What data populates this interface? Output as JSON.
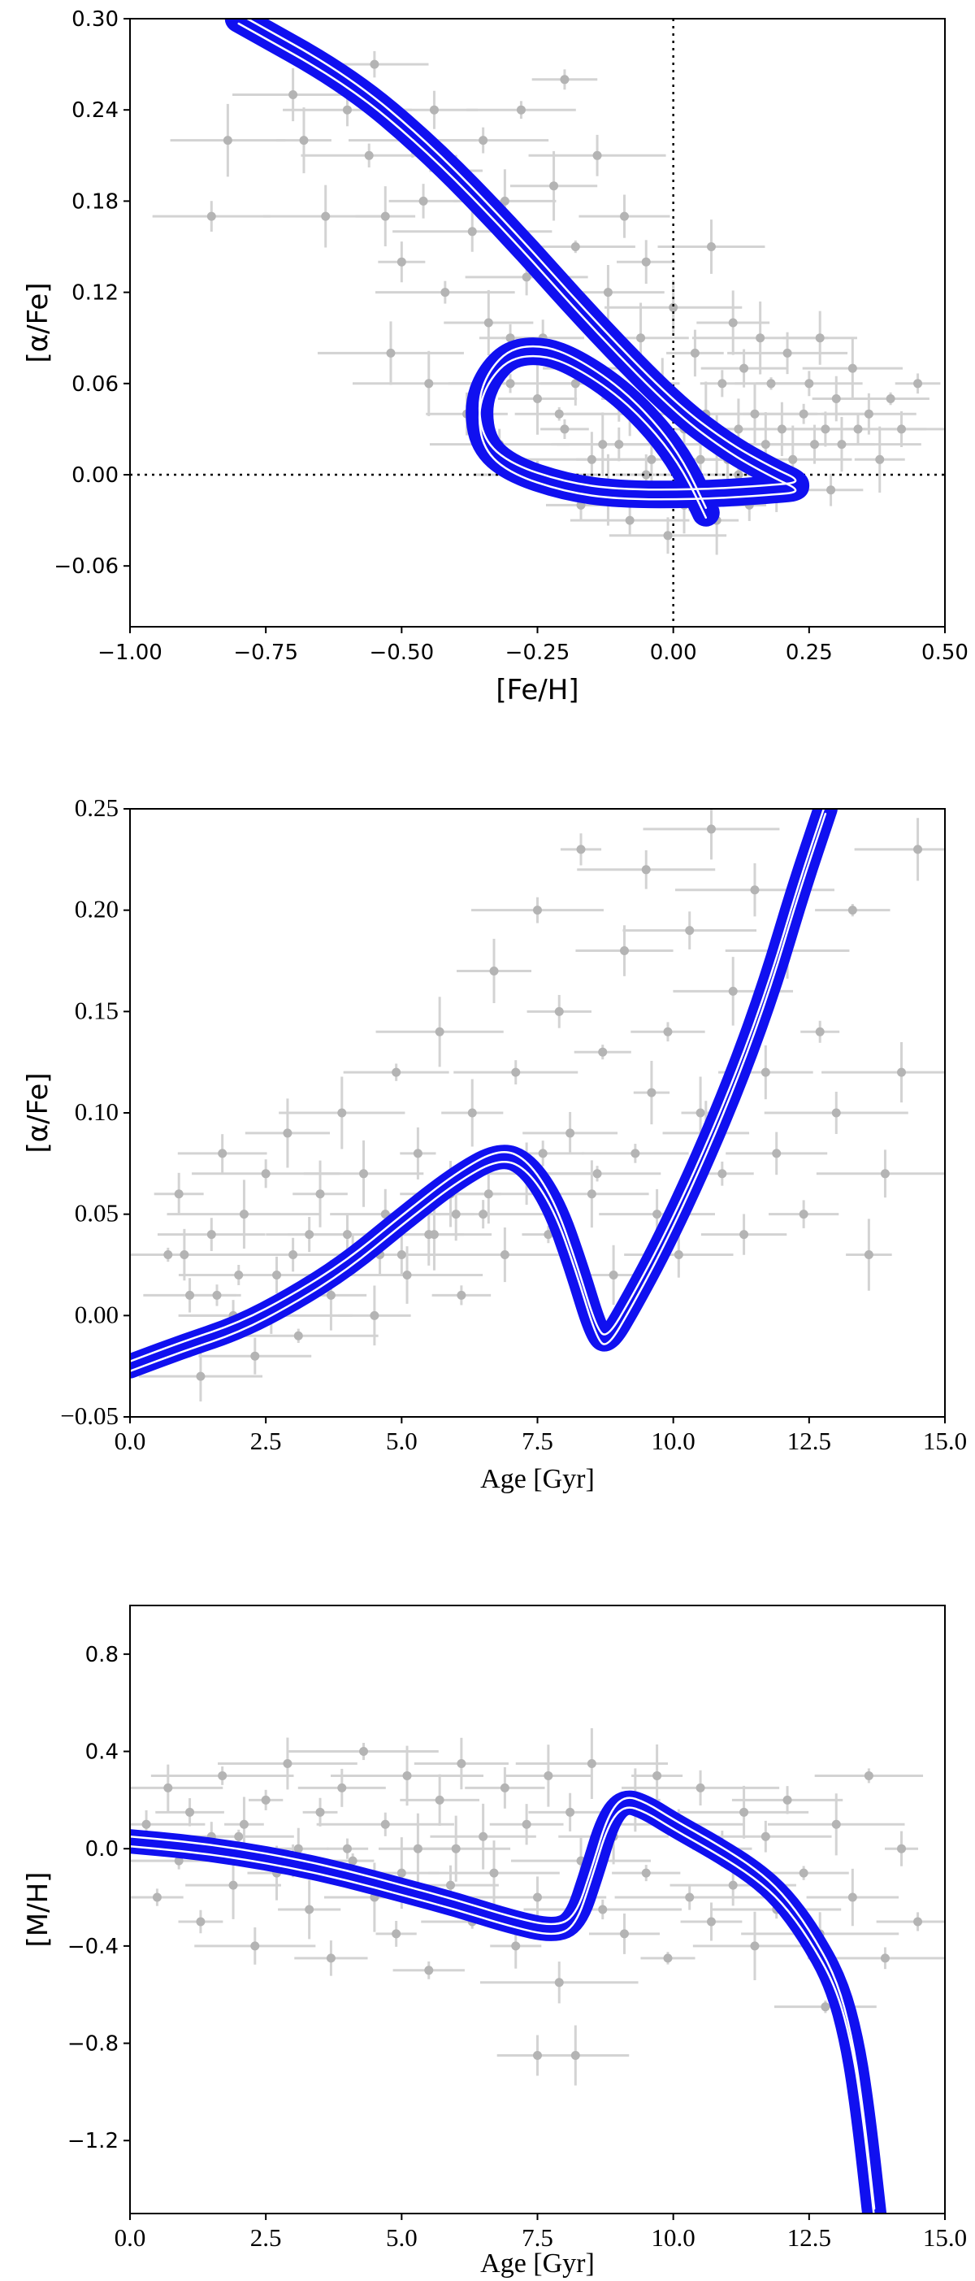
{
  "chart_data": [
    {
      "type": "scatter",
      "xlabel": "[Fe/H]",
      "ylabel": "[α/Fe]",
      "xlim": [
        -1.0,
        0.5
      ],
      "ylim": [
        -0.1,
        0.3
      ],
      "xticks": [
        "−1.00",
        "−0.75",
        "−0.50",
        "−0.25",
        "0.00",
        "0.25",
        "0.50"
      ],
      "yticks": [
        "−0.06",
        "0.00",
        "0.06",
        "0.12",
        "0.18",
        "0.24",
        "0.30"
      ],
      "reference_lines": {
        "x": 0.0,
        "y": 0.0
      },
      "grid": false,
      "legend": "none",
      "colors": {
        "model": "#1010f0",
        "data": "#b4b4b4",
        "errorbars": "#d3d3d3"
      },
      "model_track": [
        [
          -0.8,
          0.3
        ],
        [
          -0.6,
          0.26
        ],
        [
          -0.45,
          0.215
        ],
        [
          -0.3,
          0.16
        ],
        [
          -0.15,
          0.1
        ],
        [
          0.0,
          0.045
        ],
        [
          0.1,
          0.018
        ],
        [
          0.18,
          0.002
        ],
        [
          0.24,
          -0.008
        ],
        [
          0.18,
          -0.01
        ],
        [
          0.05,
          -0.013
        ],
        [
          -0.1,
          -0.013
        ],
        [
          -0.2,
          -0.008
        ],
        [
          -0.3,
          0.004
        ],
        [
          -0.35,
          0.02
        ],
        [
          -0.36,
          0.045
        ],
        [
          -0.34,
          0.065
        ],
        [
          -0.3,
          0.08
        ],
        [
          -0.24,
          0.082
        ],
        [
          -0.18,
          0.074
        ],
        [
          -0.1,
          0.055
        ],
        [
          -0.03,
          0.03
        ],
        [
          0.02,
          0.005
        ],
        [
          0.06,
          -0.025
        ]
      ],
      "data_points": [
        [
          -0.85,
          0.17
        ],
        [
          -0.82,
          0.22
        ],
        [
          -0.7,
          0.25
        ],
        [
          -0.68,
          0.22
        ],
        [
          -0.64,
          0.17
        ],
        [
          -0.6,
          0.24
        ],
        [
          -0.56,
          0.21
        ],
        [
          -0.55,
          0.27
        ],
        [
          -0.53,
          0.17
        ],
        [
          -0.52,
          0.08
        ],
        [
          -0.5,
          0.14
        ],
        [
          -0.48,
          0.22
        ],
        [
          -0.46,
          0.18
        ],
        [
          -0.45,
          0.06
        ],
        [
          -0.44,
          0.24
        ],
        [
          -0.42,
          0.12
        ],
        [
          -0.4,
          0.2
        ],
        [
          -0.38,
          0.04
        ],
        [
          -0.37,
          0.16
        ],
        [
          -0.35,
          0.22
        ],
        [
          -0.34,
          0.1
        ],
        [
          -0.32,
          0.02
        ],
        [
          -0.31,
          0.18
        ],
        [
          -0.3,
          0.06
        ],
        [
          -0.28,
          0.24
        ],
        [
          -0.27,
          0.13
        ],
        [
          -0.25,
          0.0
        ],
        [
          -0.24,
          0.09
        ],
        [
          -0.22,
          0.19
        ],
        [
          -0.21,
          0.04
        ],
        [
          -0.2,
          0.26
        ],
        [
          -0.18,
          0.15
        ],
        [
          -0.17,
          -0.02
        ],
        [
          -0.16,
          0.07
        ],
        [
          -0.14,
          0.21
        ],
        [
          -0.13,
          0.02
        ],
        [
          -0.12,
          0.12
        ],
        [
          -0.1,
          0.05
        ],
        [
          -0.09,
          0.17
        ],
        [
          -0.08,
          -0.03
        ],
        [
          -0.06,
          0.09
        ],
        [
          -0.05,
          0.14
        ],
        [
          -0.04,
          0.01
        ],
        [
          -0.02,
          0.06
        ],
        [
          -0.01,
          -0.04
        ],
        [
          0.0,
          0.11
        ],
        [
          0.02,
          0.03
        ],
        [
          0.03,
          -0.01
        ],
        [
          0.04,
          0.08
        ],
        [
          0.06,
          0.04
        ],
        [
          0.07,
          0.15
        ],
        [
          0.08,
          -0.03
        ],
        [
          0.09,
          0.06
        ],
        [
          0.1,
          0.01
        ],
        [
          0.11,
          0.1
        ],
        [
          0.12,
          0.03
        ],
        [
          0.13,
          0.07
        ],
        [
          0.14,
          -0.02
        ],
        [
          0.15,
          0.04
        ],
        [
          0.16,
          0.09
        ],
        [
          0.17,
          0.02
        ],
        [
          0.18,
          0.06
        ],
        [
          0.19,
          -0.01
        ],
        [
          0.2,
          0.03
        ],
        [
          0.21,
          0.08
        ],
        [
          0.22,
          0.01
        ],
        [
          0.24,
          0.04
        ],
        [
          0.25,
          0.06
        ],
        [
          0.26,
          0.02
        ],
        [
          0.27,
          0.09
        ],
        [
          0.28,
          0.03
        ],
        [
          0.29,
          -0.01
        ],
        [
          0.3,
          0.05
        ],
        [
          0.31,
          0.02
        ],
        [
          0.33,
          0.07
        ],
        [
          0.34,
          0.03
        ],
        [
          0.36,
          0.04
        ],
        [
          0.38,
          0.01
        ],
        [
          0.4,
          0.05
        ],
        [
          0.42,
          0.03
        ],
        [
          0.45,
          0.06
        ],
        [
          -0.2,
          0.03
        ],
        [
          -0.15,
          0.01
        ],
        [
          -0.1,
          0.02
        ],
        [
          -0.05,
          0.0
        ],
        [
          0.0,
          0.02
        ],
        [
          0.05,
          0.01
        ],
        [
          -0.25,
          0.05
        ],
        [
          -0.3,
          0.09
        ],
        [
          -0.12,
          -0.01
        ],
        [
          0.02,
          -0.02
        ],
        [
          0.08,
          0.02
        ],
        [
          -0.18,
          0.06
        ],
        [
          -0.08,
          0.04
        ],
        [
          0.12,
          0.0
        ]
      ]
    },
    {
      "type": "scatter",
      "xlabel": "Age [Gyr]",
      "ylabel": "[α/Fe]",
      "xlim": [
        0.0,
        15.0
      ],
      "ylim": [
        -0.05,
        0.25
      ],
      "xticks": [
        "0.0",
        "2.5",
        "5.0",
        "7.5",
        "10.0",
        "12.5",
        "15.0"
      ],
      "yticks": [
        "−0.05",
        "0.00",
        "0.05",
        "0.10",
        "0.15",
        "0.20",
        "0.25"
      ],
      "grid": false,
      "legend": "none",
      "colors": {
        "model": "#1010f0",
        "data": "#b4b4b4",
        "errorbars": "#d3d3d3"
      },
      "model_track": [
        [
          0.0,
          -0.025
        ],
        [
          1.0,
          -0.015
        ],
        [
          2.0,
          -0.006
        ],
        [
          3.0,
          0.008
        ],
        [
          4.0,
          0.025
        ],
        [
          5.0,
          0.047
        ],
        [
          6.0,
          0.068
        ],
        [
          6.8,
          0.08
        ],
        [
          7.3,
          0.075
        ],
        [
          7.8,
          0.055
        ],
        [
          8.2,
          0.025
        ],
        [
          8.6,
          -0.01
        ],
        [
          8.8,
          -0.013
        ],
        [
          9.2,
          0.005
        ],
        [
          9.8,
          0.035
        ],
        [
          10.5,
          0.075
        ],
        [
          11.2,
          0.12
        ],
        [
          11.8,
          0.165
        ],
        [
          12.3,
          0.21
        ],
        [
          12.8,
          0.25
        ]
      ],
      "data_points": [
        [
          0.5,
          -0.02
        ],
        [
          0.7,
          0.03
        ],
        [
          0.9,
          0.06
        ],
        [
          1.1,
          0.01
        ],
        [
          1.3,
          -0.03
        ],
        [
          1.5,
          0.04
        ],
        [
          1.7,
          0.08
        ],
        [
          1.9,
          0.0
        ],
        [
          2.1,
          0.05
        ],
        [
          2.3,
          -0.02
        ],
        [
          2.5,
          0.07
        ],
        [
          2.7,
          0.02
        ],
        [
          2.9,
          0.09
        ],
        [
          3.1,
          -0.01
        ],
        [
          3.3,
          0.04
        ],
        [
          3.5,
          0.06
        ],
        [
          3.7,
          0.01
        ],
        [
          3.9,
          0.1
        ],
        [
          4.1,
          0.03
        ],
        [
          4.3,
          0.07
        ],
        [
          4.5,
          0.0
        ],
        [
          4.7,
          0.05
        ],
        [
          4.9,
          0.12
        ],
        [
          5.1,
          0.02
        ],
        [
          5.3,
          0.08
        ],
        [
          5.5,
          0.04
        ],
        [
          5.7,
          0.14
        ],
        [
          5.9,
          0.06
        ],
        [
          6.1,
          0.01
        ],
        [
          6.3,
          0.1
        ],
        [
          6.5,
          0.05
        ],
        [
          6.7,
          0.17
        ],
        [
          6.9,
          0.03
        ],
        [
          7.1,
          0.12
        ],
        [
          7.3,
          0.07
        ],
        [
          7.5,
          0.2
        ],
        [
          7.7,
          0.04
        ],
        [
          7.9,
          0.15
        ],
        [
          8.1,
          0.09
        ],
        [
          8.3,
          0.23
        ],
        [
          8.5,
          0.06
        ],
        [
          8.7,
          0.13
        ],
        [
          8.9,
          0.02
        ],
        [
          9.1,
          0.18
        ],
        [
          9.3,
          0.08
        ],
        [
          9.5,
          0.22
        ],
        [
          9.7,
          0.05
        ],
        [
          9.9,
          0.14
        ],
        [
          10.1,
          0.03
        ],
        [
          10.3,
          0.19
        ],
        [
          10.5,
          0.1
        ],
        [
          10.7,
          0.24
        ],
        [
          10.9,
          0.07
        ],
        [
          11.1,
          0.16
        ],
        [
          11.3,
          0.04
        ],
        [
          11.5,
          0.21
        ],
        [
          11.7,
          0.12
        ],
        [
          11.9,
          0.08
        ],
        [
          12.1,
          0.18
        ],
        [
          12.4,
          0.05
        ],
        [
          12.7,
          0.14
        ],
        [
          13.0,
          0.1
        ],
        [
          13.3,
          0.2
        ],
        [
          13.6,
          0.03
        ],
        [
          13.9,
          0.07
        ],
        [
          14.2,
          0.12
        ],
        [
          14.5,
          0.23
        ],
        [
          1.0,
          0.03
        ],
        [
          2.0,
          0.02
        ],
        [
          3.0,
          0.03
        ],
        [
          4.0,
          0.04
        ],
        [
          5.0,
          0.03
        ],
        [
          6.0,
          0.05
        ],
        [
          1.6,
          0.01
        ],
        [
          2.6,
          0.0
        ],
        [
          3.6,
          0.02
        ],
        [
          4.6,
          0.03
        ],
        [
          5.6,
          0.04
        ],
        [
          6.6,
          0.06
        ],
        [
          7.6,
          0.08
        ],
        [
          8.6,
          0.07
        ],
        [
          9.6,
          0.11
        ],
        [
          10.6,
          0.09
        ]
      ]
    },
    {
      "type": "scatter",
      "xlabel": "Age [Gyr]",
      "ylabel": "[M/H]",
      "xlim": [
        0.0,
        15.0
      ],
      "ylim": [
        -1.5,
        1.0
      ],
      "xticks": [
        "0.0",
        "2.5",
        "5.0",
        "7.5",
        "10.0",
        "12.5",
        "15.0"
      ],
      "yticks": [
        "−1.2",
        "−0.8",
        "−0.4",
        "0.0",
        "0.4",
        "0.8"
      ],
      "grid": false,
      "legend": "none",
      "colors": {
        "model": "#1010f0",
        "data": "#b4b4b4",
        "errorbars": "#d3d3d3"
      },
      "model_track": [
        [
          0.0,
          0.03
        ],
        [
          1.0,
          0.01
        ],
        [
          2.0,
          -0.02
        ],
        [
          3.0,
          -0.06
        ],
        [
          4.0,
          -0.11
        ],
        [
          5.0,
          -0.17
        ],
        [
          6.0,
          -0.23
        ],
        [
          7.0,
          -0.3
        ],
        [
          7.8,
          -0.34
        ],
        [
          8.2,
          -0.3
        ],
        [
          8.5,
          -0.1
        ],
        [
          8.8,
          0.12
        ],
        [
          9.1,
          0.2
        ],
        [
          9.5,
          0.17
        ],
        [
          10.0,
          0.1
        ],
        [
          10.8,
          0.0
        ],
        [
          11.5,
          -0.1
        ],
        [
          12.0,
          -0.2
        ],
        [
          12.5,
          -0.35
        ],
        [
          13.0,
          -0.55
        ],
        [
          13.3,
          -0.8
        ],
        [
          13.5,
          -1.1
        ],
        [
          13.7,
          -1.5
        ]
      ],
      "data_points": [
        [
          0.3,
          0.1
        ],
        [
          0.5,
          -0.2
        ],
        [
          0.7,
          0.25
        ],
        [
          0.9,
          -0.05
        ],
        [
          1.1,
          0.15
        ],
        [
          1.3,
          -0.3
        ],
        [
          1.5,
          0.05
        ],
        [
          1.7,
          0.3
        ],
        [
          1.9,
          -0.15
        ],
        [
          2.1,
          0.1
        ],
        [
          2.3,
          -0.4
        ],
        [
          2.5,
          0.2
        ],
        [
          2.7,
          -0.1
        ],
        [
          2.9,
          0.35
        ],
        [
          3.1,
          0.0
        ],
        [
          3.3,
          -0.25
        ],
        [
          3.5,
          0.15
        ],
        [
          3.7,
          -0.45
        ],
        [
          3.9,
          0.25
        ],
        [
          4.1,
          -0.05
        ],
        [
          4.3,
          0.4
        ],
        [
          4.5,
          -0.2
        ],
        [
          4.7,
          0.1
        ],
        [
          4.9,
          -0.35
        ],
        [
          5.1,
          0.3
        ],
        [
          5.3,
          0.0
        ],
        [
          5.5,
          -0.5
        ],
        [
          5.7,
          0.2
        ],
        [
          5.9,
          -0.15
        ],
        [
          6.1,
          0.35
        ],
        [
          6.3,
          -0.3
        ],
        [
          6.5,
          0.05
        ],
        [
          6.7,
          -0.1
        ],
        [
          6.9,
          0.25
        ],
        [
          7.1,
          -0.4
        ],
        [
          7.3,
          0.1
        ],
        [
          7.5,
          -0.2
        ],
        [
          7.7,
          0.3
        ],
        [
          7.9,
          -0.55
        ],
        [
          8.1,
          0.15
        ],
        [
          8.3,
          -0.05
        ],
        [
          8.5,
          0.35
        ],
        [
          8.7,
          -0.25
        ],
        [
          8.9,
          0.05
        ],
        [
          9.1,
          -0.35
        ],
        [
          9.3,
          0.2
        ],
        [
          9.5,
          -0.1
        ],
        [
          9.7,
          0.3
        ],
        [
          9.9,
          -0.45
        ],
        [
          10.1,
          0.1
        ],
        [
          10.3,
          -0.2
        ],
        [
          10.5,
          0.25
        ],
        [
          10.7,
          -0.3
        ],
        [
          10.9,
          0.0
        ],
        [
          11.1,
          -0.15
        ],
        [
          11.3,
          0.15
        ],
        [
          11.5,
          -0.4
        ],
        [
          11.7,
          0.05
        ],
        [
          11.9,
          -0.25
        ],
        [
          12.1,
          0.2
        ],
        [
          12.4,
          -0.1
        ],
        [
          12.7,
          -0.35
        ],
        [
          13.0,
          0.1
        ],
        [
          13.3,
          -0.2
        ],
        [
          13.6,
          0.3
        ],
        [
          13.9,
          -0.45
        ],
        [
          14.2,
          0.0
        ],
        [
          14.5,
          -0.3
        ],
        [
          7.5,
          -0.85
        ],
        [
          8.2,
          -0.85
        ],
        [
          12.8,
          -0.65
        ],
        [
          1.0,
          0.0
        ],
        [
          2.0,
          0.05
        ],
        [
          3.0,
          -0.05
        ],
        [
          4.0,
          0.0
        ],
        [
          5.0,
          -0.1
        ],
        [
          6.0,
          0.0
        ]
      ]
    }
  ]
}
